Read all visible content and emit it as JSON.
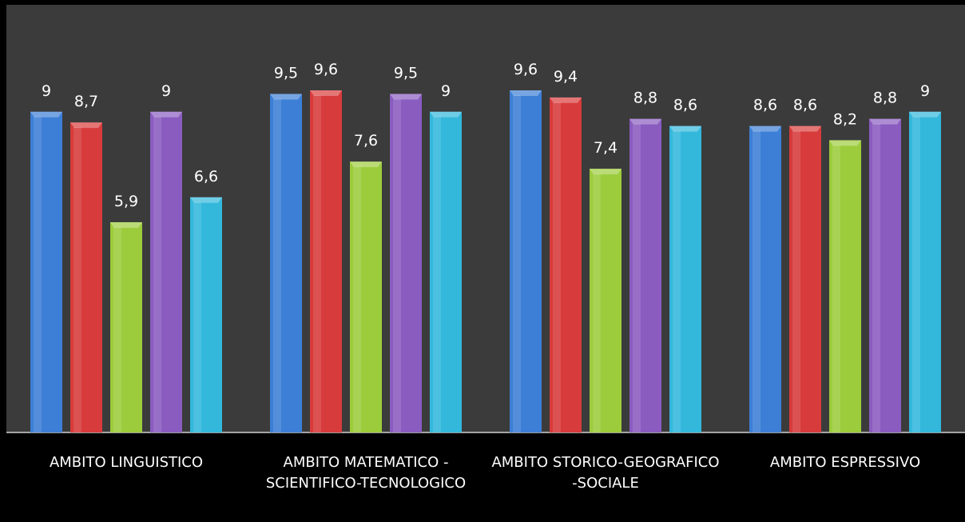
{
  "chart_data": {
    "type": "bar",
    "categories": [
      "AMBITO LINGUISTICO",
      "AMBITO MATEMATICO - SCIENTIFICO-TECNOLOGICO",
      "AMBITO STORICO-GEOGRAFICO -SOCIALE",
      "AMBITO ESPRESSIVO"
    ],
    "series": [
      {
        "color": "#3d7fd6",
        "values": [
          9,
          9.5,
          9.6,
          8.6
        ],
        "value_labels": [
          "9",
          "9,5",
          "9,6",
          "8,6"
        ]
      },
      {
        "color": "#d83b3b",
        "values": [
          8.7,
          9.6,
          9.4,
          8.6
        ],
        "value_labels": [
          "8,7",
          "9,6",
          "9,4",
          "8,6"
        ]
      },
      {
        "color": "#9ccc3c",
        "values": [
          5.9,
          7.6,
          7.4,
          8.2
        ],
        "value_labels": [
          "5,9",
          "7,6",
          "7,4",
          "8,2"
        ]
      },
      {
        "color": "#8a5cc0",
        "values": [
          9,
          9.5,
          8.8,
          8.8
        ],
        "value_labels": [
          "9",
          "9,5",
          "8,8",
          "8,8"
        ]
      },
      {
        "color": "#33b8dc",
        "values": [
          6.6,
          9,
          8.6,
          9
        ],
        "value_labels": [
          "6,6",
          "9",
          "8,6",
          "9"
        ]
      }
    ],
    "ylim": [
      0,
      12
    ]
  }
}
